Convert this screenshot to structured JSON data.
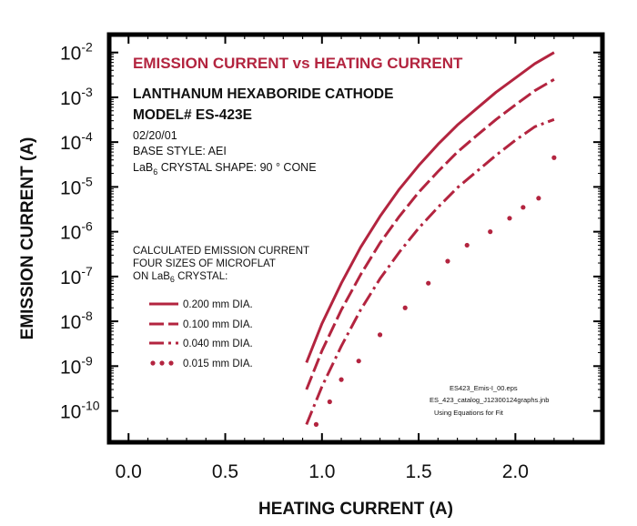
{
  "chart_data": {
    "type": "line",
    "title": "EMISSION CURRENT vs HEATING CURRENT",
    "subtitle_lines": [
      "LANTHANUM HEXABORIDE CATHODE",
      "MODEL# ES-423E"
    ],
    "info_lines": {
      "date": "02/20/01",
      "base_style": "BASE STYLE: AEI",
      "crystal_shape_pre": "LaB",
      "crystal_shape_sub": "6",
      "crystal_shape_post": " CRYSTAL SHAPE:  90 ° CONE"
    },
    "legend_heading": {
      "line1": "CALCULATED EMISSION CURRENT",
      "line2": "FOUR SIZES OF MICROFLAT",
      "line3_pre": "ON LaB",
      "line3_sub": "6",
      "line3_post": " CRYSTAL:"
    },
    "file_notes": [
      "ES423_Emis-I_00.eps",
      "ES_423_catalog_J12300124graphs.jnb",
      "Using Equations for Fit"
    ],
    "xlabel": "HEATING CURRENT (A)",
    "ylabel": "EMISSION CURRENT (A)",
    "xlim": [
      -0.1,
      2.45
    ],
    "ylim": [
      -10.7,
      -1.6
    ],
    "y_scale": "log",
    "x_ticks": [
      0.0,
      0.5,
      1.0,
      1.5,
      2.0
    ],
    "x_tick_labels": [
      "0.0",
      "0.5",
      "1.0",
      "1.5",
      "2.0"
    ],
    "y_ticks": [
      -10,
      -9,
      -8,
      -7,
      -6,
      -5,
      -4,
      -3,
      -2
    ],
    "y_tick_labels": [
      {
        "base": "10",
        "exp": "-10"
      },
      {
        "base": "10",
        "exp": "-9"
      },
      {
        "base": "10",
        "exp": "-8"
      },
      {
        "base": "10",
        "exp": "-7"
      },
      {
        "base": "10",
        "exp": "-6"
      },
      {
        "base": "10",
        "exp": "-5"
      },
      {
        "base": "10",
        "exp": "-4"
      },
      {
        "base": "10",
        "exp": "-3"
      },
      {
        "base": "10",
        "exp": "-2"
      }
    ],
    "grid": false,
    "series_color": "#b3243f",
    "series": [
      {
        "name": "0.200 mm DIA.",
        "style": "solid",
        "x": [
          0.92,
          1.0,
          1.1,
          1.2,
          1.3,
          1.4,
          1.5,
          1.6,
          1.7,
          1.8,
          1.9,
          2.0,
          2.1,
          2.2
        ],
        "y": [
          1.2e-09,
          8.9e-09,
          7.1e-08,
          4.5e-07,
          2.2e-06,
          8.9e-06,
          3e-05,
          8.9e-05,
          0.00024,
          0.00056,
          0.0013,
          0.0027,
          0.0056,
          0.01
        ]
      },
      {
        "name": "0.100 mm DIA.",
        "style": "dashed",
        "x": [
          0.92,
          1.0,
          1.1,
          1.2,
          1.3,
          1.4,
          1.5,
          1.6,
          1.7,
          1.8,
          1.9,
          2.0,
          2.1,
          2.2
        ],
        "y": [
          3e-10,
          2.2e-09,
          1.8e-08,
          1.1e-07,
          5.6e-07,
          2.2e-06,
          7.6e-06,
          2.2e-05,
          6e-05,
          0.00014,
          0.00032,
          0.00068,
          0.0014,
          0.0025
        ]
      },
      {
        "name": "0.040 mm DIA.",
        "style": "dash-dot",
        "x": [
          0.92,
          1.0,
          1.1,
          1.2,
          1.3,
          1.4,
          1.5,
          1.6,
          1.7,
          1.8,
          1.9,
          2.0,
          2.1,
          2.2
        ],
        "y": [
          5e-11,
          3.5e-10,
          2.8e-09,
          1.8e-08,
          8.9e-08,
          3.5e-07,
          1.2e-06,
          3.5e-06,
          9.6e-06,
          2.2e-05,
          5.1e-05,
          0.00011,
          0.00022,
          0.00032
        ]
      },
      {
        "name": "0.015 mm DIA.",
        "style": "dotted",
        "x": [
          0.97,
          1.04,
          1.1,
          1.19,
          1.3,
          1.43,
          1.55,
          1.65,
          1.75,
          1.87,
          1.97,
          2.04,
          2.12,
          2.2
        ],
        "y": [
          5e-11,
          1.6e-10,
          5e-10,
          1.3e-09,
          5e-09,
          2e-08,
          7.1e-08,
          2.2e-07,
          5e-07,
          1e-06,
          2e-06,
          3.5e-06,
          5.6e-06,
          4.5e-05
        ]
      }
    ]
  }
}
